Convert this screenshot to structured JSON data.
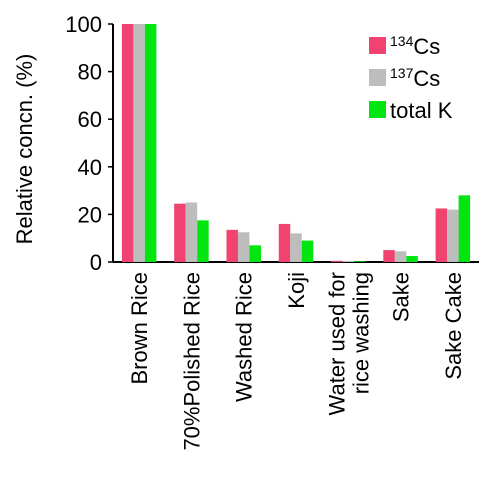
{
  "chart_data": {
    "type": "bar",
    "ylabel": "Relative concn. (%)",
    "ylim": [
      0,
      100
    ],
    "yticks": [
      0,
      20,
      40,
      60,
      80,
      100
    ],
    "grid": false,
    "legend_position": "top-right",
    "categories": [
      [
        "Brown Rice"
      ],
      [
        "70%Polished Rice"
      ],
      [
        "Washed Rice"
      ],
      [
        "Koji"
      ],
      [
        "Water used for",
        "rice washing"
      ],
      [
        "Sake"
      ],
      [
        "Sake Cake"
      ]
    ],
    "series": [
      {
        "sup": "134",
        "name": "Cs",
        "color": "#f0436f",
        "values": [
          100,
          24.5,
          13.5,
          16,
          0.5,
          5,
          22.5
        ]
      },
      {
        "sup": "137",
        "name": "Cs",
        "color": "#bdbdbd",
        "values": [
          100,
          25,
          12.5,
          12,
          0.5,
          4.5,
          22
        ]
      },
      {
        "sup": "",
        "name": "total K",
        "color": "#00e60e",
        "values": [
          100,
          17.5,
          7,
          9,
          0.3,
          2.5,
          28
        ]
      }
    ]
  }
}
